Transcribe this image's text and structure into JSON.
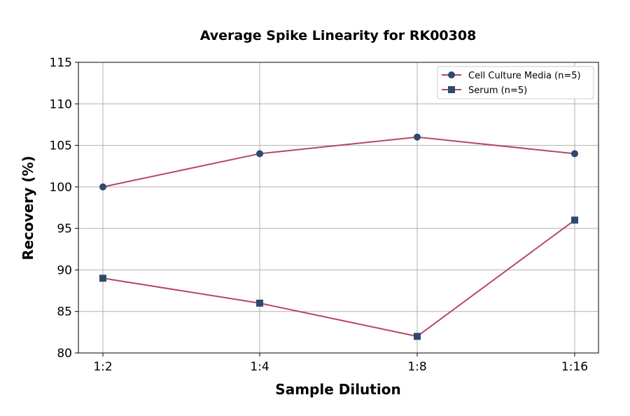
{
  "chart_data": {
    "type": "line",
    "title": "Average Spike Linearity for RK00308",
    "xlabel": "Sample Dilution",
    "ylabel": "Recovery (%)",
    "categories": [
      "1:2",
      "1:4",
      "1:8",
      "1:16"
    ],
    "ylim": [
      80,
      115
    ],
    "yticks": [
      80,
      85,
      90,
      95,
      100,
      105,
      110,
      115
    ],
    "grid": true,
    "legend_position": "top-right",
    "series": [
      {
        "name": "Cell Culture Media (n=5)",
        "values": [
          100,
          104,
          106,
          104
        ],
        "marker": "circle"
      },
      {
        "name": "Serum (n=5)",
        "values": [
          89,
          86,
          82,
          96
        ],
        "marker": "square"
      }
    ],
    "colors": {
      "line": "#b5476a",
      "marker": "#2d4a6e"
    }
  }
}
